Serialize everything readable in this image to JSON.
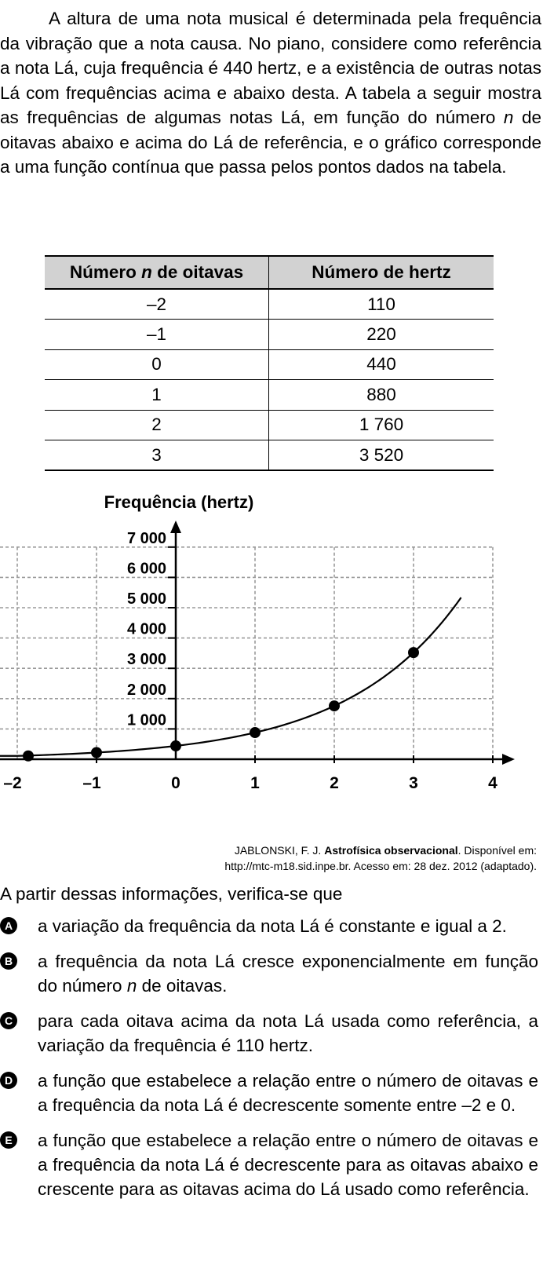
{
  "intro": {
    "p1": "A altura de uma nota musical é determinada pela frequência da vibração que a nota causa. No piano, considere como referência a nota Lá, cuja frequência é 440 hertz, e a existência de outras notas Lá com frequências acima e abaixo desta. A tabela a seguir mostra as frequências de algumas notas Lá, em função do número ",
    "n": "n",
    "p2": " de oitavas abaixo e acima do Lá de referência, e o gráfico corresponde a uma função contínua que passa pelos pontos dados na tabela."
  },
  "table": {
    "header_col1_pre": "Número ",
    "header_col1_n": "n",
    "header_col1_post": " de oitavas",
    "header_col2": "Número de hertz",
    "rows": [
      {
        "n": "–2",
        "hz": "110"
      },
      {
        "n": "–1",
        "hz": "220"
      },
      {
        "n": "0",
        "hz": "440"
      },
      {
        "n": "1",
        "hz": "880"
      },
      {
        "n": "2",
        "hz": "1 760"
      },
      {
        "n": "3",
        "hz": "3 520"
      }
    ]
  },
  "chart_data": {
    "type": "line",
    "title": "",
    "ylabel": "Frequência (hertz)",
    "xlabel": "",
    "x": [
      -2,
      -1,
      0,
      1,
      2,
      3
    ],
    "values": [
      110,
      220,
      440,
      880,
      1760,
      3520
    ],
    "curve": "440 * 2^n",
    "curve_domain": [
      -2,
      3.6
    ],
    "xlim": [
      -2,
      4
    ],
    "ylim": [
      0,
      7000
    ],
    "xticks": [
      {
        "v": -2,
        "label": "–2"
      },
      {
        "v": -1,
        "label": "–1"
      },
      {
        "v": 0,
        "label": "0"
      },
      {
        "v": 1,
        "label": "1"
      },
      {
        "v": 2,
        "label": "2"
      },
      {
        "v": 3,
        "label": "3"
      },
      {
        "v": 4,
        "label": "4"
      }
    ],
    "yticks": [
      {
        "v": 1000,
        "label": "1 000"
      },
      {
        "v": 2000,
        "label": "2 000"
      },
      {
        "v": 3000,
        "label": "3 000"
      },
      {
        "v": 4000,
        "label": "4 000"
      },
      {
        "v": 5000,
        "label": "5 000"
      },
      {
        "v": 6000,
        "label": "6 000"
      },
      {
        "v": 7000,
        "label": "7 000"
      }
    ],
    "grid": true,
    "grid_style": "dashed"
  },
  "source": {
    "line1_pre": "JABLONSKI, F. J. ",
    "line1_bold": "Astrofísica observacional",
    "line1_post": ". Disponível em:",
    "line2": "http://mtc-m18.sid.inpe.br. Acesso em: 28 dez. 2012 (adaptado)."
  },
  "prompt": "A partir dessas informações, verifica-se que",
  "options": [
    {
      "letter": "A",
      "text": "a variação da frequência da nota Lá é constante e igual a 2."
    },
    {
      "letter": "B",
      "pre": "a frequência da nota Lá cresce exponencialmente em função do número ",
      "n": "n",
      "post": " de oitavas."
    },
    {
      "letter": "C",
      "text": "para cada oitava acima da nota Lá usada como referência, a variação da frequência é 110 hertz."
    },
    {
      "letter": "D",
      "text": "a função que estabelece a relação entre o número de oitavas e a frequência da nota Lá é decrescente somente entre –2 e 0."
    },
    {
      "letter": "E",
      "text": "a função que estabelece a relação entre o número de oitavas e a frequência da nota Lá é decrescente para as oitavas abaixo e crescente para as oitavas acima do Lá usado como referência."
    }
  ]
}
